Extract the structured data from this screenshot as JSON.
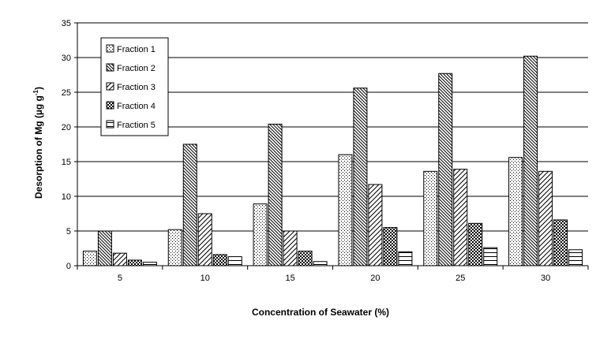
{
  "chart_data": {
    "type": "bar",
    "title": "",
    "xlabel": "Concentration of Seawater (%)",
    "ylabel_main": "Desorption of Mg (µg g",
    "ylabel_sup": "-1",
    "ylabel_tail": ")",
    "categories": [
      "5",
      "10",
      "15",
      "20",
      "25",
      "30"
    ],
    "series": [
      {
        "name": "Fraction 1",
        "pattern": "dots",
        "values": [
          2.1,
          5.2,
          8.9,
          16.0,
          13.6,
          15.6
        ]
      },
      {
        "name": "Fraction 2",
        "pattern": "diag-dense",
        "values": [
          5.0,
          17.5,
          20.4,
          25.6,
          27.7,
          30.2
        ]
      },
      {
        "name": "Fraction 3",
        "pattern": "diag-sparse",
        "values": [
          1.8,
          7.5,
          5.0,
          11.7,
          13.9,
          13.6
        ]
      },
      {
        "name": "Fraction 4",
        "pattern": "checker",
        "values": [
          0.8,
          1.6,
          2.1,
          5.5,
          6.1,
          6.6
        ]
      },
      {
        "name": "Fraction 5",
        "pattern": "hlines",
        "values": [
          0.5,
          1.3,
          0.6,
          2.0,
          2.6,
          2.3
        ]
      }
    ],
    "ylim": [
      0,
      35
    ],
    "yticks": [
      0,
      5,
      10,
      15,
      20,
      25,
      30,
      35
    ],
    "grid": true,
    "legend_position": "top-left",
    "colors": {
      "bar_stroke": "#000000",
      "grid": "#000000",
      "background": "#ffffff"
    }
  }
}
